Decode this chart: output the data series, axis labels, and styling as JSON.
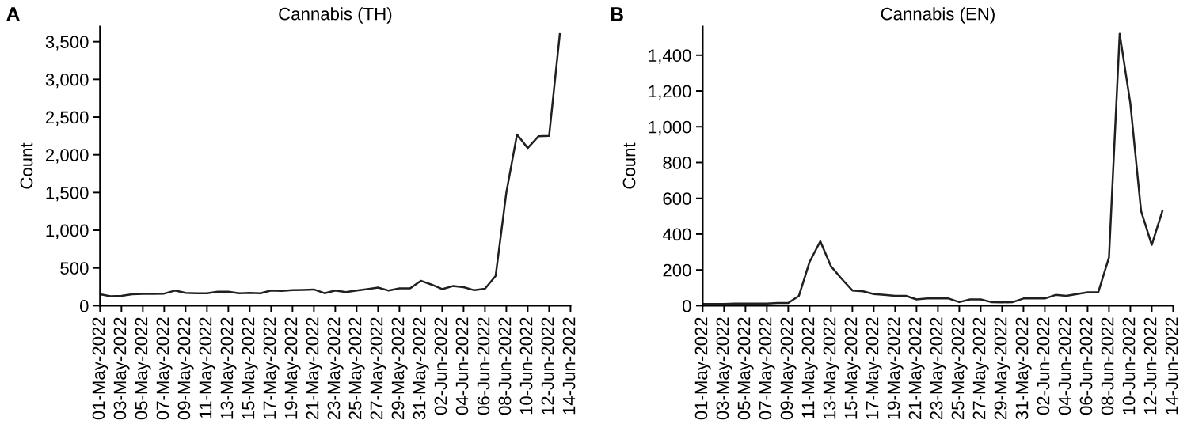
{
  "chart_data": [
    {
      "type": "line",
      "title": "Cannabis (TH)",
      "ylabel": "Count",
      "annotations": [
        "A"
      ],
      "grid": false,
      "legend": false,
      "marker": "none",
      "line_style": "solid",
      "x": [
        "2022-05-01",
        "2022-05-02",
        "2022-05-03",
        "2022-05-04",
        "2022-05-05",
        "2022-05-06",
        "2022-05-07",
        "2022-05-08",
        "2022-05-09",
        "2022-05-10",
        "2022-05-11",
        "2022-05-12",
        "2022-05-13",
        "2022-05-14",
        "2022-05-15",
        "2022-05-16",
        "2022-05-17",
        "2022-05-18",
        "2022-05-19",
        "2022-05-20",
        "2022-05-21",
        "2022-05-22",
        "2022-05-23",
        "2022-05-24",
        "2022-05-25",
        "2022-05-26",
        "2022-05-27",
        "2022-05-28",
        "2022-05-29",
        "2022-05-30",
        "2022-05-31",
        "2022-06-01",
        "2022-06-02",
        "2022-06-03",
        "2022-06-04",
        "2022-06-05",
        "2022-06-06",
        "2022-06-07",
        "2022-06-08",
        "2022-06-09",
        "2022-06-10",
        "2022-06-11",
        "2022-06-12",
        "2022-06-13"
      ],
      "series": [
        {
          "color": "#231f20",
          "values": [
            150,
            125,
            130,
            150,
            155,
            155,
            160,
            200,
            170,
            165,
            165,
            185,
            185,
            165,
            170,
            165,
            200,
            195,
            205,
            210,
            215,
            165,
            200,
            180,
            200,
            220,
            240,
            200,
            230,
            230,
            330,
            280,
            220,
            260,
            245,
            205,
            225,
            395,
            1500,
            2270,
            2090,
            2245,
            2250,
            3600
          ]
        }
      ],
      "xlim": [
        "2022-05-01",
        "2022-06-14"
      ],
      "xticks": [
        {
          "value": "2022-05-01",
          "label": "01-May-2022"
        },
        {
          "value": "2022-05-03",
          "label": "03-May-2022"
        },
        {
          "value": "2022-05-05",
          "label": "05-May-2022"
        },
        {
          "value": "2022-05-07",
          "label": "07-May-2022"
        },
        {
          "value": "2022-05-09",
          "label": "09-May-2022"
        },
        {
          "value": "2022-05-11",
          "label": "11-May-2022"
        },
        {
          "value": "2022-05-13",
          "label": "13-May-2022"
        },
        {
          "value": "2022-05-15",
          "label": "15-May-2022"
        },
        {
          "value": "2022-05-17",
          "label": "17-May-2022"
        },
        {
          "value": "2022-05-19",
          "label": "19-May-2022"
        },
        {
          "value": "2022-05-21",
          "label": "21-May-2022"
        },
        {
          "value": "2022-05-23",
          "label": "23-May-2022"
        },
        {
          "value": "2022-05-25",
          "label": "25-May-2022"
        },
        {
          "value": "2022-05-27",
          "label": "27-May-2022"
        },
        {
          "value": "2022-05-29",
          "label": "29-May-2022"
        },
        {
          "value": "2022-05-31",
          "label": "31-May-2022"
        },
        {
          "value": "2022-06-02",
          "label": "02-Jun-2022"
        },
        {
          "value": "2022-06-04",
          "label": "04-Jun-2022"
        },
        {
          "value": "2022-06-06",
          "label": "06-Jun-2022"
        },
        {
          "value": "2022-06-08",
          "label": "08-Jun-2022"
        },
        {
          "value": "2022-06-10",
          "label": "10-Jun-2022"
        },
        {
          "value": "2022-06-12",
          "label": "12-Jun-2022"
        },
        {
          "value": "2022-06-14",
          "label": "14-Jun-2022"
        }
      ],
      "ylim": [
        0,
        3700
      ],
      "yticks": [
        0,
        500,
        {
          "value": 1000,
          "label": "1,000"
        },
        {
          "value": 1500,
          "label": "1,500"
        },
        {
          "value": 2000,
          "label": "2,000"
        },
        {
          "value": 2500,
          "label": "2,500"
        },
        {
          "value": 3000,
          "label": "3,000"
        },
        {
          "value": 3500,
          "label": "3,500"
        }
      ]
    },
    {
      "type": "line",
      "title": "Cannabis (EN)",
      "ylabel": "Count",
      "annotations": [
        "B"
      ],
      "grid": false,
      "legend": false,
      "marker": "none",
      "line_style": "solid",
      "x": [
        "2022-05-01",
        "2022-05-02",
        "2022-05-03",
        "2022-05-04",
        "2022-05-05",
        "2022-05-06",
        "2022-05-07",
        "2022-05-08",
        "2022-05-09",
        "2022-05-10",
        "2022-05-11",
        "2022-05-12",
        "2022-05-13",
        "2022-05-14",
        "2022-05-15",
        "2022-05-16",
        "2022-05-17",
        "2022-05-18",
        "2022-05-19",
        "2022-05-20",
        "2022-05-21",
        "2022-05-22",
        "2022-05-23",
        "2022-05-24",
        "2022-05-25",
        "2022-05-26",
        "2022-05-27",
        "2022-05-28",
        "2022-05-29",
        "2022-05-30",
        "2022-05-31",
        "2022-06-01",
        "2022-06-02",
        "2022-06-03",
        "2022-06-04",
        "2022-06-05",
        "2022-06-06",
        "2022-06-07",
        "2022-06-08",
        "2022-06-09",
        "2022-06-10",
        "2022-06-11",
        "2022-06-12",
        "2022-06-13"
      ],
      "series": [
        {
          "color": "#231f20",
          "values": [
            10,
            10,
            10,
            12,
            12,
            12,
            12,
            15,
            15,
            55,
            245,
            360,
            220,
            150,
            85,
            80,
            65,
            60,
            55,
            55,
            35,
            40,
            40,
            40,
            20,
            35,
            35,
            20,
            18,
            20,
            40,
            40,
            40,
            60,
            55,
            65,
            75,
            75,
            270,
            1520,
            1130,
            530,
            340,
            530
          ]
        }
      ],
      "xlim": [
        "2022-05-01",
        "2022-06-14"
      ],
      "xticks": [
        {
          "value": "2022-05-01",
          "label": "01-May-2022"
        },
        {
          "value": "2022-05-03",
          "label": "03-May-2022"
        },
        {
          "value": "2022-05-05",
          "label": "05-May-2022"
        },
        {
          "value": "2022-05-07",
          "label": "07-May-2022"
        },
        {
          "value": "2022-05-09",
          "label": "09-May-2022"
        },
        {
          "value": "2022-05-11",
          "label": "11-May-2022"
        },
        {
          "value": "2022-05-13",
          "label": "13-May-2022"
        },
        {
          "value": "2022-05-15",
          "label": "15-May-2022"
        },
        {
          "value": "2022-05-17",
          "label": "17-May-2022"
        },
        {
          "value": "2022-05-19",
          "label": "19-May-2022"
        },
        {
          "value": "2022-05-21",
          "label": "21-May-2022"
        },
        {
          "value": "2022-05-23",
          "label": "23-May-2022"
        },
        {
          "value": "2022-05-25",
          "label": "25-May-2022"
        },
        {
          "value": "2022-05-27",
          "label": "27-May-2022"
        },
        {
          "value": "2022-05-29",
          "label": "29-May-2022"
        },
        {
          "value": "2022-05-31",
          "label": "31-May-2022"
        },
        {
          "value": "2022-06-02",
          "label": "02-Jun-2022"
        },
        {
          "value": "2022-06-04",
          "label": "04-Jun-2022"
        },
        {
          "value": "2022-06-06",
          "label": "06-Jun-2022"
        },
        {
          "value": "2022-06-08",
          "label": "08-Jun-2022"
        },
        {
          "value": "2022-06-10",
          "label": "10-Jun-2022"
        },
        {
          "value": "2022-06-12",
          "label": "12-Jun-2022"
        },
        {
          "value": "2022-06-14",
          "label": "14-Jun-2022"
        }
      ],
      "ylim": [
        0,
        1560
      ],
      "yticks": [
        0,
        200,
        400,
        600,
        800,
        {
          "value": 1000,
          "label": "1,000"
        },
        {
          "value": 1200,
          "label": "1,200"
        },
        {
          "value": 1400,
          "label": "1,400"
        }
      ]
    }
  ]
}
